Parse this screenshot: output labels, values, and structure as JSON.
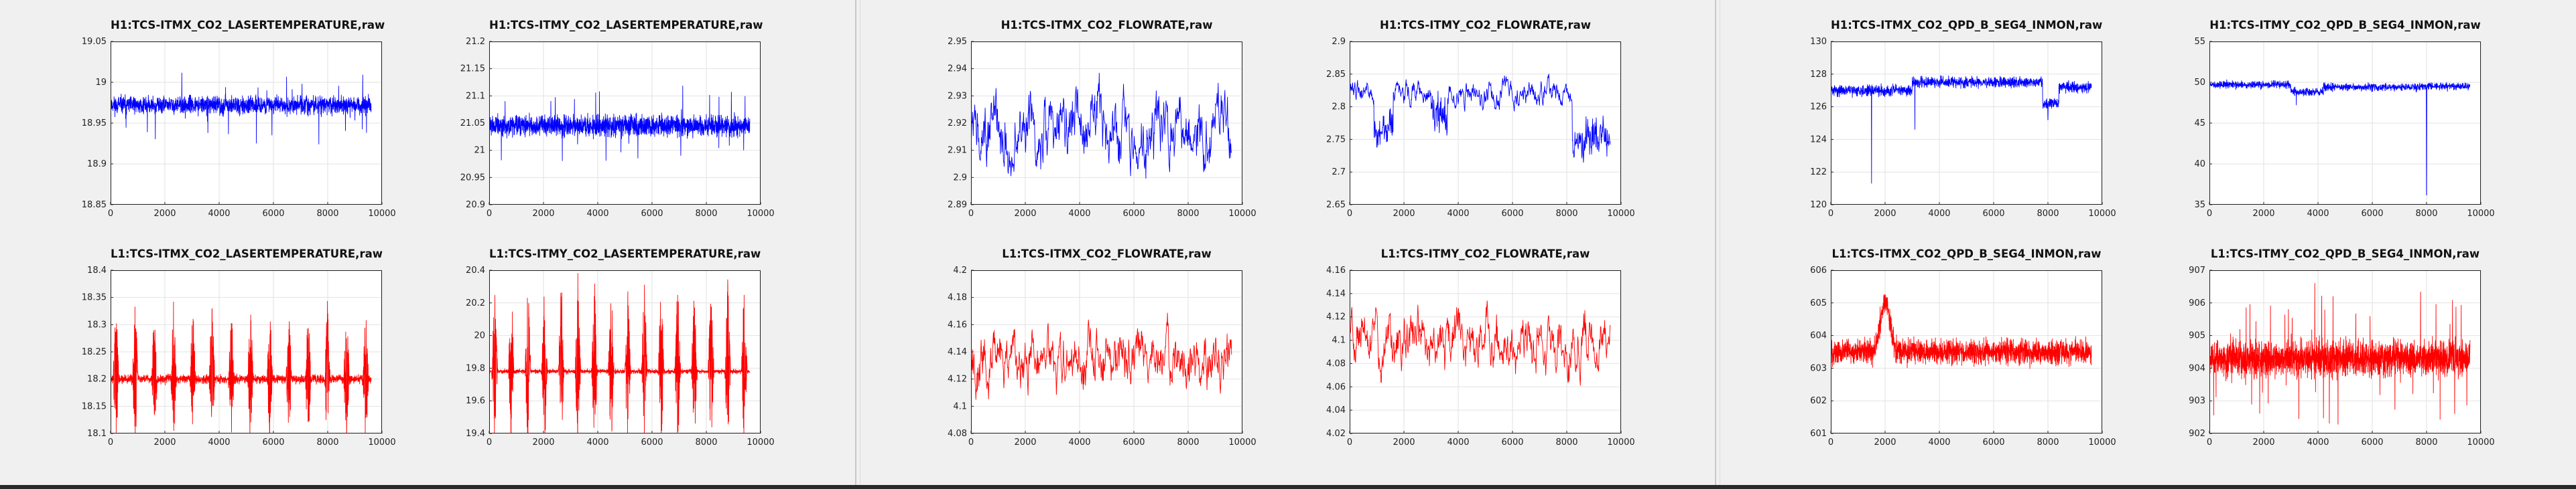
{
  "chart_data": [
    {
      "type": "line",
      "window": 0,
      "title": "H1:TCS-ITMX_CO2_LASERTEMPERATURE,raw",
      "color": "#0000ff",
      "xlim": [
        0,
        10000
      ],
      "xticks": [
        0,
        2000,
        4000,
        6000,
        8000,
        10000
      ],
      "ylim": [
        18.85,
        19.05
      ],
      "yticks": [
        18.85,
        18.9,
        18.95,
        19,
        19.05
      ],
      "yticklabels": [
        "18.85",
        "18.9",
        "18.95",
        "19",
        "19.05"
      ],
      "style": "noise",
      "n": 1800,
      "base": 18.972,
      "amp": 0.016,
      "spike": 0.05,
      "x_end": 9600,
      "seed": 11
    },
    {
      "type": "line",
      "window": 0,
      "title": "H1:TCS-ITMY_CO2_LASERTEMPERATURE,raw",
      "color": "#0000ff",
      "xlim": [
        0,
        10000
      ],
      "xticks": [
        0,
        2000,
        4000,
        6000,
        8000,
        10000
      ],
      "ylim": [
        20.9,
        21.2
      ],
      "yticks": [
        20.9,
        20.95,
        21,
        21.05,
        21.1,
        21.15,
        21.2
      ],
      "yticklabels": [
        "20.9",
        "20.95",
        "21",
        "21.05",
        "21.1",
        "21.15",
        "21.2"
      ],
      "style": "noise",
      "n": 2000,
      "base": 21.045,
      "amp": 0.028,
      "spike": 0.06,
      "x_end": 9600,
      "seed": 12
    },
    {
      "type": "line",
      "window": 0,
      "title": "L1:TCS-ITMX_CO2_LASERTEMPERATURE,raw",
      "color": "#ff0000",
      "xlim": [
        0,
        10000
      ],
      "xticks": [
        0,
        2000,
        4000,
        6000,
        8000,
        10000
      ],
      "ylim": [
        18.1,
        18.4
      ],
      "yticks": [
        18.1,
        18.15,
        18.2,
        18.25,
        18.3,
        18.35,
        18.4
      ],
      "yticklabels": [
        "18.1",
        "18.15",
        "18.2",
        "18.25",
        "18.3",
        "18.35",
        "18.4"
      ],
      "style": "bursts",
      "n": 2000,
      "base": 18.2,
      "amp": 0.012,
      "burst_amp": 0.14,
      "burst_count": 14,
      "x_end": 9600,
      "seed": 13
    },
    {
      "type": "line",
      "window": 0,
      "title": "L1:TCS-ITMY_CO2_LASERTEMPERATURE,raw",
      "color": "#ff0000",
      "xlim": [
        0,
        10000
      ],
      "xticks": [
        0,
        2000,
        4000,
        6000,
        8000,
        10000
      ],
      "ylim": [
        19.4,
        20.4
      ],
      "yticks": [
        19.4,
        19.6,
        19.8,
        20,
        20.2,
        20.4
      ],
      "yticklabels": [
        "19.4",
        "19.6",
        "19.8",
        "20",
        "20.2",
        "20.4"
      ],
      "style": "bursts",
      "n": 2000,
      "base": 19.78,
      "amp": 0.02,
      "burst_amp": 0.55,
      "burst_count": 16,
      "x_end": 9600,
      "seed": 14
    },
    {
      "type": "line",
      "window": 1,
      "title": "H1:TCS-ITMX_CO2_FLOWRATE,raw",
      "color": "#0000ff",
      "xlim": [
        0,
        10000
      ],
      "xticks": [
        0,
        2000,
        4000,
        6000,
        8000,
        10000
      ],
      "ylim": [
        2.89,
        2.95
      ],
      "yticks": [
        2.89,
        2.9,
        2.91,
        2.92,
        2.93,
        2.94,
        2.95
      ],
      "yticklabels": [
        "2.89",
        "2.9",
        "2.91",
        "2.92",
        "2.93",
        "2.94",
        "2.95"
      ],
      "style": "walk",
      "n": 700,
      "base": 2.918,
      "amp": 0.009,
      "x_end": 9600,
      "seed": 21
    },
    {
      "type": "line",
      "window": 1,
      "title": "H1:TCS-ITMY_CO2_FLOWRATE,raw",
      "color": "#0000ff",
      "xlim": [
        0,
        10000
      ],
      "xticks": [
        0,
        2000,
        4000,
        6000,
        8000,
        10000
      ],
      "ylim": [
        2.65,
        2.9
      ],
      "yticks": [
        2.65,
        2.7,
        2.75,
        2.8,
        2.85,
        2.9
      ],
      "yticklabels": [
        "2.65",
        "2.7",
        "2.75",
        "2.8",
        "2.85",
        "2.9"
      ],
      "style": "walkdrop",
      "n": 800,
      "base": 2.82,
      "amp": 0.018,
      "drops": [
        [
          900,
          1600,
          2.76
        ],
        [
          3000,
          3600,
          2.79
        ],
        [
          8200,
          9600,
          2.75
        ]
      ],
      "x_end": 9600,
      "seed": 22
    },
    {
      "type": "line",
      "window": 1,
      "title": "L1:TCS-ITMX_CO2_FLOWRATE,raw",
      "color": "#ff0000",
      "xlim": [
        0,
        10000
      ],
      "xticks": [
        0,
        2000,
        4000,
        6000,
        8000,
        10000
      ],
      "ylim": [
        4.08,
        4.2
      ],
      "yticks": [
        4.08,
        4.1,
        4.12,
        4.14,
        4.16,
        4.18,
        4.2
      ],
      "yticklabels": [
        "4.08",
        "4.1",
        "4.12",
        "4.14",
        "4.16",
        "4.18",
        "4.2"
      ],
      "style": "walk",
      "n": 700,
      "base": 4.135,
      "amp": 0.014,
      "x_end": 9600,
      "seed": 23
    },
    {
      "type": "line",
      "window": 1,
      "title": "L1:TCS-ITMY_CO2_FLOWRATE,raw",
      "color": "#ff0000",
      "xlim": [
        0,
        10000
      ],
      "xticks": [
        0,
        2000,
        4000,
        6000,
        8000,
        10000
      ],
      "ylim": [
        4.02,
        4.16
      ],
      "yticks": [
        4.02,
        4.04,
        4.06,
        4.08,
        4.1,
        4.12,
        4.14,
        4.16
      ],
      "yticklabels": [
        "4.02",
        "4.04",
        "4.06",
        "4.08",
        "4.1",
        "4.12",
        "4.14",
        "4.16"
      ],
      "style": "walk",
      "n": 700,
      "base": 4.095,
      "amp": 0.016,
      "x_end": 9600,
      "seed": 24
    },
    {
      "type": "line",
      "window": 2,
      "title": "H1:TCS-ITMX_CO2_QPD_B_SEG4_INMON,raw",
      "color": "#0000ff",
      "xlim": [
        0,
        10000
      ],
      "xticks": [
        0,
        2000,
        4000,
        6000,
        8000,
        10000
      ],
      "ylim": [
        120,
        130
      ],
      "yticks": [
        120,
        122,
        124,
        126,
        128,
        130
      ],
      "yticklabels": [
        "120",
        "122",
        "124",
        "126",
        "128",
        "130"
      ],
      "style": "level",
      "n": 1600,
      "amp": 0.5,
      "levels": [
        [
          0,
          3000,
          127.0
        ],
        [
          3000,
          7800,
          127.5
        ],
        [
          7800,
          8400,
          126.2
        ],
        [
          8400,
          9600,
          127.2
        ]
      ],
      "spikes": [
        [
          1500,
          121.3
        ],
        [
          3100,
          124.6
        ],
        [
          8000,
          125.2
        ]
      ],
      "x_end": 9600,
      "seed": 31
    },
    {
      "type": "line",
      "window": 2,
      "title": "H1:TCS-ITMY_CO2_QPD_B_SEG4_INMON,raw",
      "color": "#0000ff",
      "xlim": [
        0,
        10000
      ],
      "xticks": [
        0,
        2000,
        4000,
        6000,
        8000,
        10000
      ],
      "ylim": [
        35,
        55
      ],
      "yticks": [
        35,
        40,
        45,
        50,
        55
      ],
      "yticklabels": [
        "35",
        "40",
        "45",
        "50",
        "55"
      ],
      "style": "level",
      "n": 1600,
      "amp": 0.7,
      "levels": [
        [
          0,
          3000,
          49.7
        ],
        [
          3000,
          4200,
          48.8
        ],
        [
          4200,
          7800,
          49.4
        ],
        [
          7800,
          9600,
          49.5
        ]
      ],
      "spikes": [
        [
          8000,
          36.2
        ],
        [
          3200,
          47.2
        ]
      ],
      "x_end": 9600,
      "seed": 32
    },
    {
      "type": "line",
      "window": 2,
      "title": "L1:TCS-ITMX_CO2_QPD_B_SEG4_INMON,raw",
      "color": "#ff0000",
      "xlim": [
        0,
        10000
      ],
      "xticks": [
        0,
        2000,
        4000,
        6000,
        8000,
        10000
      ],
      "ylim": [
        601,
        606
      ],
      "yticks": [
        601,
        602,
        603,
        604,
        605,
        606
      ],
      "yticklabels": [
        "601",
        "602",
        "603",
        "604",
        "605",
        "606"
      ],
      "style": "noisebump",
      "n": 2200,
      "base": 603.5,
      "amp": 0.55,
      "bump_x": 2000,
      "bump_h": 1.5,
      "bump_w": 180,
      "x_end": 9600,
      "seed": 33
    },
    {
      "type": "line",
      "window": 2,
      "title": "L1:TCS-ITMY_CO2_QPD_B_SEG4_INMON,raw",
      "color": "#ff0000",
      "xlim": [
        0,
        10000
      ],
      "xticks": [
        0,
        2000,
        4000,
        6000,
        8000,
        10000
      ],
      "ylim": [
        902,
        907
      ],
      "yticks": [
        902,
        903,
        904,
        905,
        906,
        907
      ],
      "yticklabels": [
        "902",
        "903",
        "904",
        "905",
        "906",
        "907"
      ],
      "style": "noise",
      "n": 2400,
      "base": 904.3,
      "amp": 0.8,
      "spike": 1.9,
      "x_end": 9600,
      "seed": 34
    }
  ]
}
